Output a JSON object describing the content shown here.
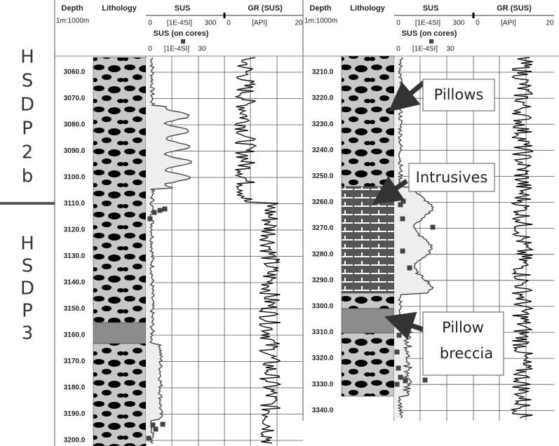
{
  "sidebar": {
    "top": [
      "H",
      "S",
      "D",
      "P",
      "2",
      "b"
    ],
    "bottom": [
      "H",
      "S",
      "D",
      "P",
      "3"
    ]
  },
  "left": {
    "header": {
      "depth": "Depth",
      "scale": "1m:1000m",
      "lithology": "Lithology",
      "sus": "SUS",
      "gr": "GR (SUS)",
      "sus_min": "0",
      "sus_unit": "[1E-4SI]",
      "sus_max": "300",
      "gr_min": "0",
      "gr_unit": "[API]",
      "gr_max": "20",
      "cores": "SUS (on cores)",
      "cores_min": "0",
      "cores_unit": "[1E-4SI]",
      "cores_max": "30"
    },
    "depths": [
      "3060.0",
      "3070.0",
      "3080.0",
      "3090.0",
      "3100.0",
      "3110.0",
      "3120.0",
      "3130.0",
      "3140.0",
      "3150.0",
      "3160.0",
      "3170.0",
      "3180.0",
      "3190.0",
      "3200.0"
    ]
  },
  "right": {
    "header": {
      "depth": "Depth",
      "scale": "1m:1000m",
      "lithology": "Lithology",
      "sus": "SUS",
      "gr": "GR (SUS)",
      "sus_min": "0",
      "sus_unit": "[1E-4SI]",
      "sus_max": "300",
      "gr_min": "0",
      "gr_unit": "[API]",
      "gr_max": "20",
      "cores": "SUS (on cores)",
      "cores_min": "0",
      "cores_unit": "[1E-4SI]",
      "cores_max": "30"
    },
    "depths": [
      "3210.0",
      "3220.0",
      "3230.0",
      "3240.0",
      "3250.0",
      "3260.0",
      "3270.0",
      "3280.0",
      "3290.0",
      "3300.0",
      "3310.0",
      "3320.0",
      "3330.0",
      "3340.0"
    ]
  },
  "annotations": {
    "pillows": "Pillows",
    "intrusives": "Intrusives",
    "breccia_1": "Pillow",
    "breccia_2": "breccia"
  }
}
